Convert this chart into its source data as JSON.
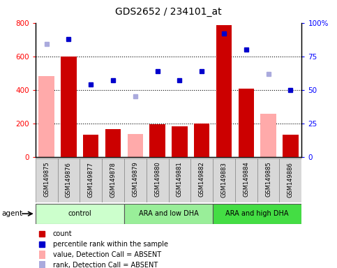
{
  "title": "GDS2652 / 234101_at",
  "samples": [
    "GSM149875",
    "GSM149876",
    "GSM149877",
    "GSM149878",
    "GSM149879",
    "GSM149880",
    "GSM149881",
    "GSM149882",
    "GSM149883",
    "GSM149884",
    "GSM149885",
    "GSM149886"
  ],
  "groups": [
    {
      "label": "control",
      "color": "#ccffcc",
      "start": 0,
      "end": 3
    },
    {
      "label": "ARA and low DHA",
      "color": "#99ee99",
      "start": 4,
      "end": 7
    },
    {
      "label": "ARA and high DHA",
      "color": "#44dd44",
      "start": 8,
      "end": 11
    }
  ],
  "count": [
    null,
    600,
    130,
    165,
    null,
    195,
    180,
    200,
    785,
    405,
    null,
    130
  ],
  "percentile_rank": [
    null,
    88,
    54,
    57,
    null,
    64,
    57,
    64,
    92,
    80,
    null,
    50
  ],
  "value_absent": [
    480,
    null,
    null,
    null,
    135,
    null,
    null,
    null,
    null,
    null,
    255,
    null
  ],
  "rank_absent": [
    84,
    null,
    null,
    null,
    45,
    null,
    null,
    null,
    null,
    null,
    62,
    null
  ],
  "ylim_left": [
    0,
    800
  ],
  "ylim_right": [
    0,
    100
  ],
  "yticks_left": [
    0,
    200,
    400,
    600,
    800
  ],
  "yticks_right": [
    0,
    25,
    50,
    75,
    100
  ],
  "yticklabels_right": [
    "0",
    "25",
    "50",
    "75",
    "100%"
  ],
  "bar_color": "#cc0000",
  "absent_bar_color": "#ffaaaa",
  "dot_color": "#0000cc",
  "absent_dot_color": "#aaaadd",
  "agent_label": "agent",
  "legend": [
    {
      "color": "#cc0000",
      "label": "count",
      "type": "square"
    },
    {
      "color": "#0000cc",
      "label": "percentile rank within the sample",
      "type": "square"
    },
    {
      "color": "#ffaaaa",
      "label": "value, Detection Call = ABSENT",
      "type": "bar"
    },
    {
      "color": "#aaaadd",
      "label": "rank, Detection Call = ABSENT",
      "type": "bar"
    }
  ],
  "grid_color": "black",
  "grid_style": "dotted",
  "grid_linewidth": 0.8,
  "title_fontsize": 10,
  "label_fontsize": 6,
  "group_fontsize": 7,
  "legend_fontsize": 7
}
